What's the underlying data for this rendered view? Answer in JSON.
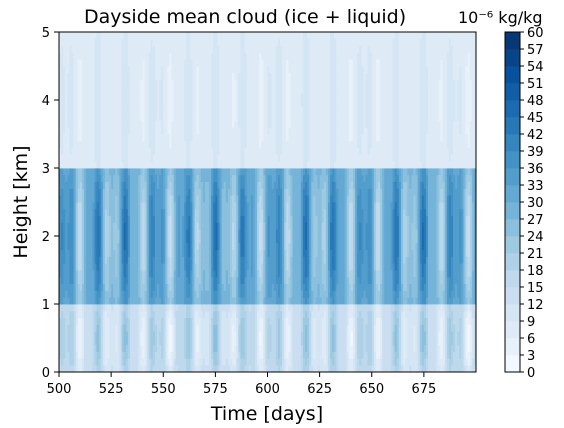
{
  "chart_data": {
    "type": "heatmap",
    "title": "Dayside mean cloud (ice + liquid)",
    "units": "10⁻⁶ kg/kg",
    "xlabel": "Time [days]",
    "ylabel": "Height [km]",
    "xlim": [
      500,
      700
    ],
    "ylim": [
      0,
      5
    ],
    "x_ticks": [
      500,
      525,
      550,
      575,
      600,
      625,
      650,
      675
    ],
    "y_ticks": [
      0,
      1,
      2,
      3,
      4,
      5
    ],
    "colorbar": {
      "levels": [
        0,
        3,
        6,
        9,
        12,
        15,
        18,
        21,
        24,
        27,
        30,
        33,
        36,
        39,
        42,
        45,
        48,
        51,
        54,
        57,
        60
      ],
      "colormap": "Blues",
      "min": 0,
      "max": 60
    },
    "layers": [
      {
        "height_range": [
          0,
          1
        ],
        "mean_value": 14,
        "amplitude": 12
      },
      {
        "height_range": [
          1,
          3
        ],
        "mean_value": 30,
        "amplitude": 16
      },
      {
        "height_range": [
          3,
          5
        ],
        "mean_value": 8,
        "amplitude": 3
      }
    ],
    "oscillation_period_days": 14.3,
    "colors": {
      "low": "#f7fbff",
      "high": "#08306b"
    }
  }
}
